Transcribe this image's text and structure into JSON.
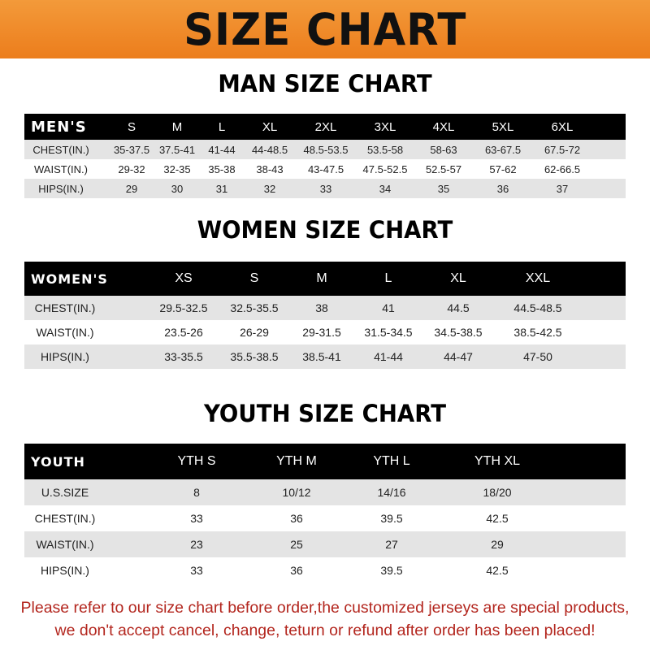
{
  "banner": {
    "title": "SIZE CHART",
    "color": "#ef8a2a"
  },
  "men": {
    "heading": "MAN SIZE CHART",
    "header": [
      "MEN'S",
      "S",
      "M",
      "L",
      "XL",
      "2XL",
      "3XL",
      "4XL",
      "5XL",
      "6XL"
    ],
    "rows": [
      [
        "CHEST(IN.)",
        "35-37.5",
        "37.5-41",
        "41-44",
        "44-48.5",
        "48.5-53.5",
        "53.5-58",
        "58-63",
        "63-67.5",
        "67.5-72"
      ],
      [
        "WAIST(IN.)",
        "29-32",
        "32-35",
        "35-38",
        "38-43",
        "43-47.5",
        "47.5-52.5",
        "52.5-57",
        "57-62",
        "62-66.5"
      ],
      [
        "HIPS(IN.)",
        "29",
        "30",
        "31",
        "32",
        "33",
        "34",
        "35",
        "36",
        "37"
      ]
    ]
  },
  "women": {
    "heading": "WOMEN SIZE CHART",
    "header": [
      "WOMEN'S",
      "XS",
      "S",
      "M",
      "L",
      "XL",
      "XXL"
    ],
    "rows": [
      [
        "CHEST(IN.)",
        "29.5-32.5",
        "32.5-35.5",
        "38",
        "41",
        "44.5",
        "44.5-48.5"
      ],
      [
        "WAIST(IN.)",
        "23.5-26",
        "26-29",
        "29-31.5",
        "31.5-34.5",
        "34.5-38.5",
        "38.5-42.5"
      ],
      [
        "HIPS(IN.)",
        "33-35.5",
        "35.5-38.5",
        "38.5-41",
        "41-44",
        "44-47",
        "47-50"
      ]
    ]
  },
  "youth": {
    "heading": "YOUTH SIZE CHART",
    "header": [
      "YOUTH",
      "YTH S",
      "YTH M",
      "YTH L",
      "YTH XL"
    ],
    "rows": [
      [
        "U.S.SIZE",
        "8",
        "10/12",
        "14/16",
        "18/20"
      ],
      [
        "CHEST(IN.)",
        "33",
        "36",
        "39.5",
        "42.5"
      ],
      [
        "WAIST(IN.)",
        "23",
        "25",
        "27",
        "29"
      ],
      [
        "HIPS(IN.)",
        "33",
        "36",
        "39.5",
        "42.5"
      ]
    ]
  },
  "footer": {
    "line1": "Please refer to our size chart before order,the customized jerseys are special products,",
    "line2": "we don't accept cancel, change, teturn or refund after order has been placed!",
    "color": "#b3261e"
  }
}
